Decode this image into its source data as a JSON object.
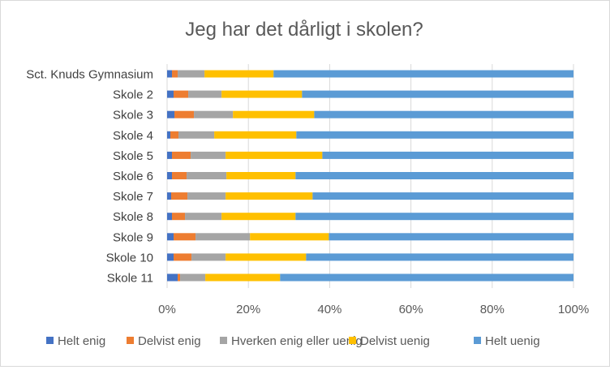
{
  "chart_data": {
    "type": "bar",
    "orientation": "horizontal",
    "stacked": "percent",
    "title": "Jeg har det dårligt i skolen?",
    "categories": [
      "Sct. Knuds Gymnasium",
      "Skole 2",
      "Skole 3",
      "Skole 4",
      "Skole 5",
      "Skole 6",
      "Skole 7",
      "Skole 8",
      "Skole 9",
      "Skole 10",
      "Skole 11"
    ],
    "series": [
      {
        "name": "Helt enig",
        "color": "#4472C4",
        "values": [
          1.2,
          1.6,
          1.8,
          0.8,
          1.2,
          1.2,
          1.0,
          1.2,
          1.6,
          1.6,
          2.6
        ]
      },
      {
        "name": "Delvist enig",
        "color": "#ED7D31",
        "values": [
          1.4,
          3.6,
          4.8,
          2.0,
          4.6,
          3.6,
          4.0,
          3.2,
          5.4,
          4.4,
          0.6
        ]
      },
      {
        "name": "Hverken enig eller uenig",
        "color": "#A5A5A5",
        "values": [
          6.6,
          8.2,
          9.6,
          8.8,
          8.6,
          9.8,
          9.4,
          9.0,
          13.4,
          8.4,
          6.2
        ]
      },
      {
        "name": "Delvist uenig",
        "color": "#FFC000",
        "values": [
          17.0,
          19.8,
          20.0,
          20.2,
          23.8,
          17.0,
          21.4,
          18.2,
          19.4,
          19.8,
          18.4
        ]
      },
      {
        "name": "Helt uenig",
        "color": "#5B9BD5",
        "values": [
          73.8,
          66.8,
          63.8,
          68.2,
          61.8,
          68.4,
          64.2,
          68.4,
          60.2,
          65.8,
          72.2
        ]
      }
    ],
    "xaxis": {
      "ticks": [
        "0%",
        "20%",
        "40%",
        "60%",
        "80%",
        "100%"
      ],
      "min": 0,
      "max": 100
    },
    "grid": true,
    "legend_position": "bottom"
  }
}
